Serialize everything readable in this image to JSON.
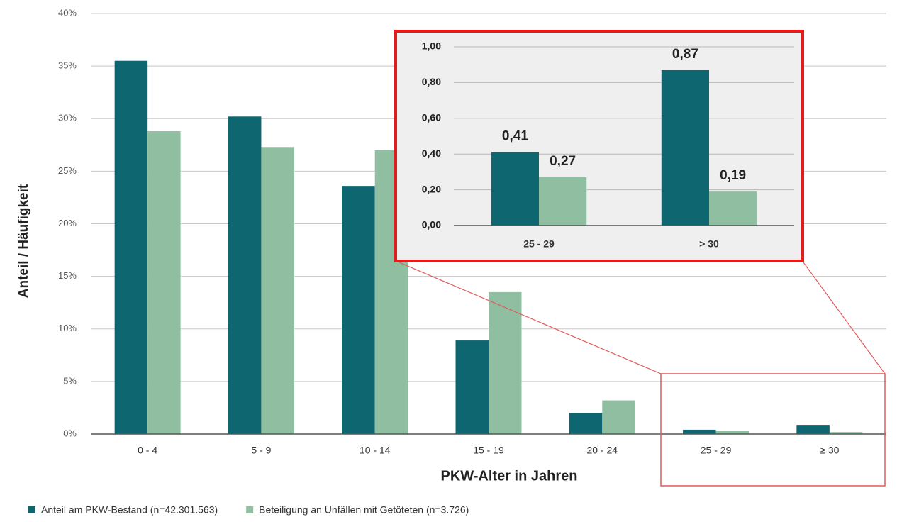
{
  "chart_data": [
    {
      "type": "bar",
      "categories": [
        "0 - 4",
        "5 - 9",
        "10 - 14",
        "15 - 19",
        "20 - 24",
        "25 - 29",
        "≥ 30"
      ],
      "series": [
        {
          "name": "Anteil am PKW-Bestand (n=42.301.563)",
          "color": "#0e6670",
          "values": [
            35.5,
            30.2,
            23.6,
            8.9,
            2.0,
            0.41,
            0.87
          ]
        },
        {
          "name": "Beteiligung an Unfällen mit Getöteten (n=3.726)",
          "color": "#8fbfa0",
          "values": [
            28.8,
            27.3,
            27.0,
            13.5,
            3.2,
            0.27,
            0.19
          ]
        }
      ],
      "xlabel": "PKW-Alter in Jahren",
      "ylabel": "Anteil / Häufigkeit",
      "ylim": [
        0,
        40
      ],
      "yticks": [
        {
          "value": 0,
          "label": "0%"
        },
        {
          "value": 5,
          "label": "5%"
        },
        {
          "value": 10,
          "label": "10%"
        },
        {
          "value": 15,
          "label": "15%"
        },
        {
          "value": 20,
          "label": "20%"
        },
        {
          "value": 25,
          "label": "25%"
        },
        {
          "value": 30,
          "label": "30%"
        },
        {
          "value": 35,
          "label": "35%"
        },
        {
          "value": 40,
          "label": "40%"
        }
      ],
      "grid": true,
      "legend": "bottom-left"
    },
    {
      "type": "bar",
      "categories": [
        "25 - 29",
        "> 30"
      ],
      "series": [
        {
          "color": "#0e6670",
          "values": [
            0.41,
            0.87
          ],
          "value_labels": [
            "0,41",
            "0,87"
          ]
        },
        {
          "color": "#8fbfa0",
          "values": [
            0.27,
            0.19
          ],
          "value_labels": [
            "0,27",
            "0,19"
          ]
        }
      ],
      "ylim": [
        0,
        1
      ],
      "yticks": [
        {
          "value": 0,
          "label": "0,00"
        },
        {
          "value": 0.2,
          "label": "0,20"
        },
        {
          "value": 0.4,
          "label": "0,40"
        },
        {
          "value": 0.6,
          "label": "0,60"
        },
        {
          "value": 0.8,
          "label": "0,80"
        },
        {
          "value": 1,
          "label": "1,00"
        }
      ],
      "grid": true
    }
  ]
}
